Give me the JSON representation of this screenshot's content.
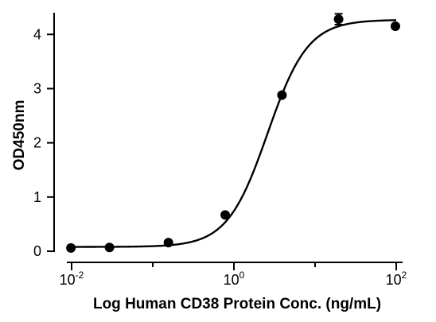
{
  "chart_data": {
    "type": "scatter",
    "title": "",
    "xlabel": "Log Human CD38 Protein Conc. (ng/mL)",
    "ylabel": "OD450nm",
    "x_scale": "log10",
    "xlim": [
      0.01,
      100
    ],
    "ylim": [
      0,
      4.4
    ],
    "x_ticks": [
      {
        "value": 0.01,
        "base": "10",
        "exp": "-2"
      },
      {
        "value": 1,
        "base": "10",
        "exp": "0"
      },
      {
        "value": 100,
        "base": "10",
        "exp": "2"
      }
    ],
    "y_ticks": [
      {
        "value": 0,
        "label": "0"
      },
      {
        "value": 1,
        "label": "1"
      },
      {
        "value": 2,
        "label": "2"
      },
      {
        "value": 3,
        "label": "3"
      },
      {
        "value": 4,
        "label": "4"
      }
    ],
    "series": [
      {
        "points": [
          {
            "x": 0.0098,
            "y": 0.06,
            "err": 0
          },
          {
            "x": 0.0293,
            "y": 0.07,
            "err": 0
          },
          {
            "x": 0.156,
            "y": 0.16,
            "err": 0
          },
          {
            "x": 0.781,
            "y": 0.67,
            "err": 0
          },
          {
            "x": 3.91,
            "y": 2.88,
            "err": 0
          },
          {
            "x": 19.5,
            "y": 4.28,
            "err": 0.1
          },
          {
            "x": 97.7,
            "y": 4.15,
            "err": 0
          }
        ]
      }
    ],
    "fit_curve": {
      "model": "4PL",
      "bottom": 0.08,
      "top": 4.27,
      "ec50": 2.6,
      "hill": 1.75
    },
    "grid": false,
    "legend": "none",
    "colors": {
      "marker": "#000000",
      "axis": "#000000"
    }
  }
}
